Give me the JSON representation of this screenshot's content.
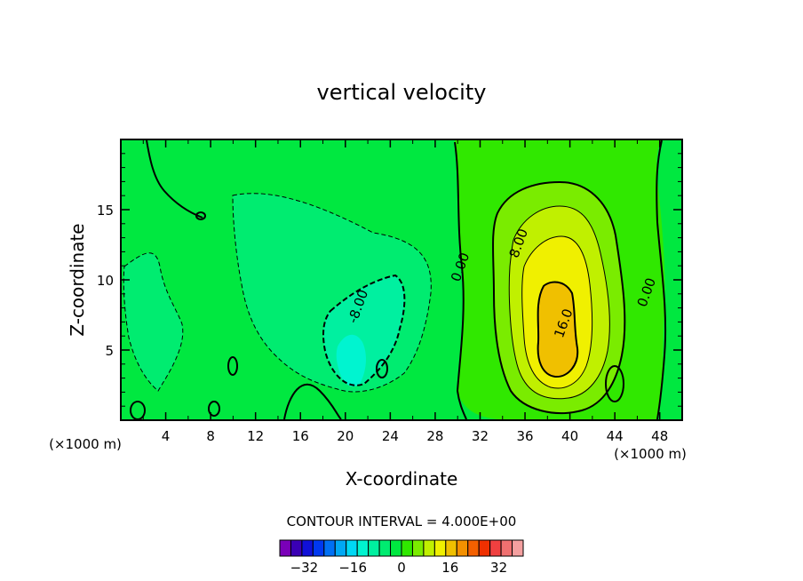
{
  "chart_data": {
    "type": "heatmap",
    "title": "vertical velocity",
    "xlabel": "X-coordinate",
    "ylabel": "Z-coordinate",
    "x_unit": "(×1000 m)",
    "y_unit": "(×1000 m)",
    "xlim": [
      0,
      50
    ],
    "ylim": [
      0,
      20
    ],
    "x_ticks": [
      4,
      8,
      12,
      16,
      20,
      24,
      28,
      32,
      36,
      40,
      44,
      48
    ],
    "y_ticks": [
      5,
      10,
      15
    ],
    "x_tick_labels": [
      "4",
      "8",
      "12",
      "16",
      "20",
      "24",
      "28",
      "32",
      "36",
      "40",
      "44",
      "48"
    ],
    "y_tick_labels": [
      "5",
      "10",
      "15"
    ],
    "contour_interval_label": "CONTOUR INTERVAL = 4.000E+00",
    "contour_interval": 4.0,
    "contour_labels": [
      {
        "text": "-8.00",
        "x": 21.5,
        "z": 8.0
      },
      {
        "text": "0.00",
        "x": 30.6,
        "z": 10.8
      },
      {
        "text": "8.00",
        "x": 35.8,
        "z": 12.5
      },
      {
        "text": "16.0",
        "x": 39.8,
        "z": 6.8
      },
      {
        "text": "0.00",
        "x": 47.2,
        "z": 9.0
      }
    ],
    "features": [
      {
        "name": "updraft core",
        "x_center": 38.5,
        "z_center": 7.5,
        "max_value": 20
      },
      {
        "name": "downdraft core",
        "x_center": 20.5,
        "z_center": 3.5,
        "min_value": -12
      }
    ],
    "colorbar": {
      "tick_labels": [
        "-32",
        "-16",
        "0",
        "16",
        "32"
      ],
      "tick_values": [
        -32,
        -16,
        0,
        16,
        32
      ],
      "range": [
        -40,
        40
      ],
      "colors": [
        "#7a00b8",
        "#3a00b4",
        "#1010d8",
        "#0038f0",
        "#0070f4",
        "#00a8f4",
        "#00d8f4",
        "#00f4d0",
        "#00f0a0",
        "#00ec70",
        "#00e840",
        "#30e800",
        "#7aec00",
        "#c0f000",
        "#f0f000",
        "#f0c000",
        "#f49000",
        "#f46000",
        "#f03000",
        "#f04040",
        "#f07070",
        "#f4a0a0"
      ]
    }
  }
}
